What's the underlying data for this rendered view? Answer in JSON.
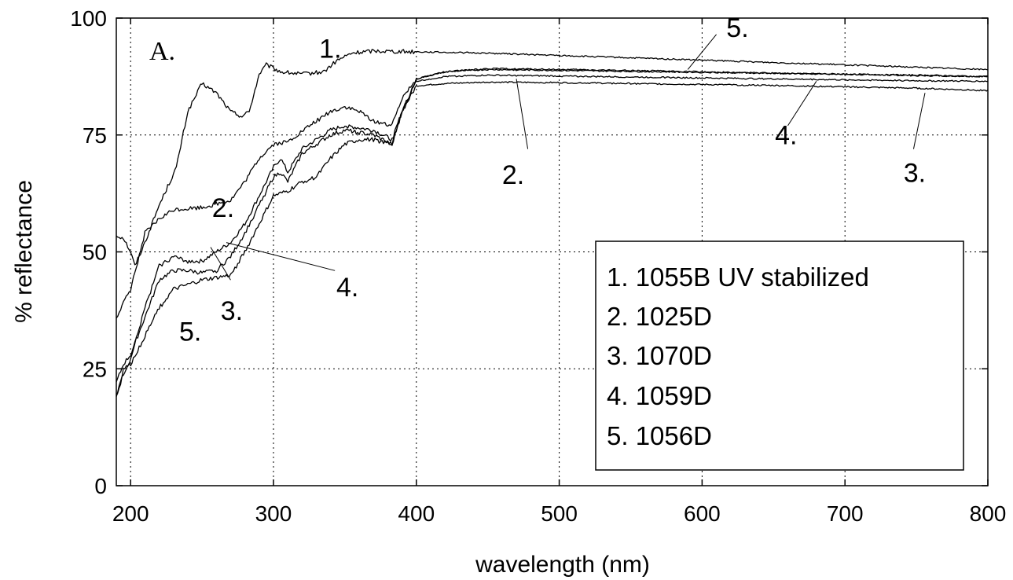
{
  "chart_data": {
    "type": "line",
    "panel_label": "A.",
    "xlabel": "wavelength (nm)",
    "ylabel": "% reflectance",
    "xlim": [
      190,
      800
    ],
    "ylim": [
      0,
      100
    ],
    "xticks": [
      200,
      300,
      400,
      500,
      600,
      700,
      800
    ],
    "yticks": [
      0,
      25,
      50,
      75,
      100
    ],
    "grid": true,
    "legend_position": "bottom-right",
    "legend": [
      "1. 1055B UV stabilized",
      "2. 1025D",
      "3. 1070D",
      "4. 1059D",
      "5. 1056D"
    ],
    "series": [
      {
        "name": "1. 1055B UV stabilized",
        "x": [
          190,
          195,
          200,
          203,
          210,
          220,
          232,
          240,
          250,
          260,
          270,
          278,
          283,
          290,
          295,
          305,
          320,
          335,
          345,
          355,
          370,
          400,
          450,
          500,
          550,
          600,
          650,
          700,
          750,
          800
        ],
        "y": [
          53.5,
          53,
          50,
          47,
          52,
          60,
          68,
          80,
          86,
          84,
          80,
          79,
          80,
          88,
          90,
          88.5,
          88,
          88.5,
          91,
          92.5,
          93,
          92.8,
          92.5,
          92,
          91.5,
          91,
          90.5,
          90,
          89.5,
          89
        ]
      },
      {
        "name": "2. 1025D",
        "x": [
          190,
          195,
          200,
          210,
          220,
          230,
          250,
          270,
          280,
          290,
          300,
          310,
          330,
          340,
          350,
          360,
          370,
          383,
          390,
          400,
          420,
          450,
          500,
          550,
          600,
          650,
          700,
          750,
          800
        ],
        "y": [
          36,
          39,
          42,
          54,
          57,
          59,
          59.5,
          61,
          65,
          70,
          73,
          73.5,
          78,
          80,
          81,
          80,
          78,
          77,
          83,
          87,
          88.5,
          89.2,
          89,
          88.8,
          88.5,
          88.2,
          88,
          87.7,
          87.5
        ]
      },
      {
        "name": "3. 1070D",
        "x": [
          190,
          195,
          200,
          210,
          220,
          230,
          240,
          250,
          260,
          270,
          280,
          290,
          300,
          305,
          310,
          320,
          330,
          340,
          350,
          360,
          370,
          383,
          390,
          400,
          420,
          450,
          500,
          550,
          600,
          650,
          700,
          750,
          800
        ],
        "y": [
          19,
          24,
          27,
          38,
          47,
          49,
          48,
          48,
          50,
          52,
          56,
          62,
          68,
          70,
          67,
          72,
          74,
          76,
          77,
          76.5,
          76,
          74,
          80,
          85.5,
          86,
          86.3,
          86.2,
          86,
          85.8,
          85.6,
          85.3,
          85,
          84.5
        ]
      },
      {
        "name": "4. 1059D",
        "x": [
          190,
          195,
          200,
          210,
          220,
          230,
          240,
          250,
          260,
          270,
          280,
          290,
          300,
          305,
          310,
          320,
          330,
          340,
          350,
          360,
          370,
          383,
          390,
          400,
          420,
          450,
          500,
          550,
          600,
          650,
          700,
          750,
          800
        ],
        "y": [
          22,
          26,
          28,
          36,
          44,
          46,
          46,
          45.5,
          46,
          49,
          54,
          60,
          66,
          67,
          65,
          71,
          73,
          75,
          76,
          75.5,
          75,
          73,
          80,
          86.5,
          87.5,
          87.8,
          87.6,
          87.4,
          87.2,
          87,
          86.8,
          86.6,
          86.5
        ]
      },
      {
        "name": "5. 1056D",
        "x": [
          190,
          195,
          200,
          210,
          220,
          230,
          240,
          250,
          260,
          270,
          280,
          290,
          300,
          310,
          320,
          330,
          340,
          350,
          360,
          370,
          383,
          390,
          400,
          420,
          450,
          500,
          550,
          600,
          650,
          700,
          750,
          800
        ],
        "y": [
          19,
          25,
          26,
          32,
          38,
          42,
          43,
          44,
          44.5,
          45,
          50,
          56,
          62,
          63,
          65,
          66,
          70,
          73,
          74,
          74,
          73,
          80,
          87,
          88.5,
          89,
          88.8,
          88.6,
          88.4,
          88.2,
          88,
          87.8,
          87.5
        ]
      }
    ],
    "curve_labels": [
      {
        "text": "1.",
        "x": 332,
        "y": 91.5
      },
      {
        "text": "2.",
        "x": 257,
        "y": 57.5
      },
      {
        "text": "3.",
        "x": 263,
        "y": 35.5
      },
      {
        "text": "4.",
        "x": 344,
        "y": 40.5
      },
      {
        "text": "5.",
        "x": 234,
        "y": 31
      },
      {
        "text": "5.",
        "x": 617,
        "y": 96
      },
      {
        "text": "2.",
        "x": 460,
        "y": 64.5
      },
      {
        "text": "4.",
        "x": 651,
        "y": 73
      },
      {
        "text": "3.",
        "x": 741,
        "y": 65
      }
    ],
    "leaders": [
      {
        "from": [
          270,
          44
        ],
        "to": [
          256,
          51
        ]
      },
      {
        "from": [
          343,
          46
        ],
        "to": [
          267,
          52
        ]
      },
      {
        "from": [
          610,
          96.5
        ],
        "to": [
          590,
          89
        ]
      },
      {
        "from": [
          478,
          72
        ],
        "to": [
          470,
          87
        ]
      },
      {
        "from": [
          660,
          77
        ],
        "to": [
          680,
          86.5
        ]
      },
      {
        "from": [
          748,
          72
        ],
        "to": [
          756,
          84
        ]
      }
    ]
  }
}
